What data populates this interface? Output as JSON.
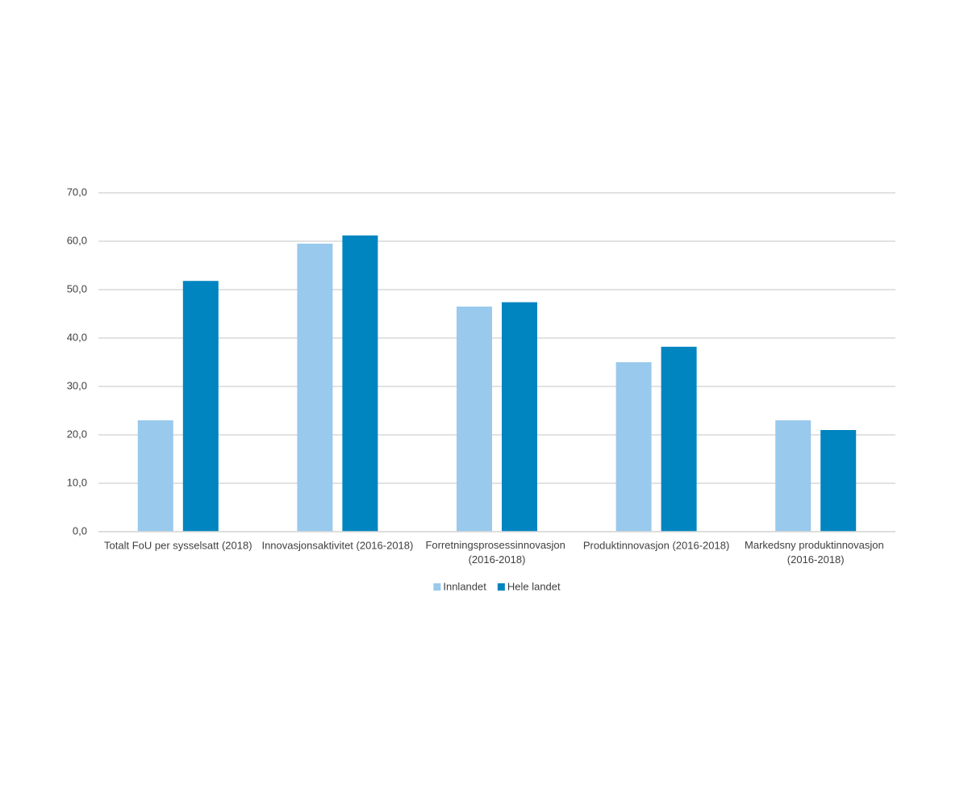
{
  "chart_data": {
    "type": "bar",
    "categories": [
      "Totalt FoU per sysselsatt (2018)",
      "Innovasjonsaktivitet (2016-2018)",
      "Forretningsprosessinnovasjon (2016-2018)",
      "Produktinnovasjon (2016-2018)",
      "Markedsny produktinnovasjon (2016-2018)"
    ],
    "series": [
      {
        "name": "Innlandet",
        "color": "#99c9ec",
        "values": [
          23.0,
          59.5,
          46.5,
          35.0,
          23.0
        ]
      },
      {
        "name": "Hele landet",
        "color": "#0085c0",
        "values": [
          51.8,
          61.2,
          47.4,
          38.2,
          21.0
        ]
      }
    ],
    "ylim": [
      0,
      70
    ],
    "yticks": [
      {
        "value": 0,
        "label": "0,0"
      },
      {
        "value": 10,
        "label": "10,0"
      },
      {
        "value": 20,
        "label": "20,0"
      },
      {
        "value": 30,
        "label": "30,0"
      },
      {
        "value": 40,
        "label": "40,0"
      },
      {
        "value": 50,
        "label": "50,0"
      },
      {
        "value": 60,
        "label": "60,0"
      },
      {
        "value": 70,
        "label": "70,0"
      }
    ],
    "grid": true,
    "legend": "bottom"
  }
}
